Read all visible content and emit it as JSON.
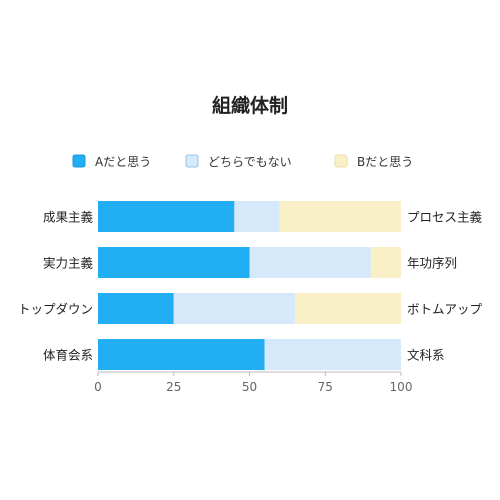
{
  "chart_data": {
    "type": "bar",
    "orientation": "horizontal",
    "stacked": true,
    "title": "組織体制",
    "categories": [
      "成果主義",
      "実力主義",
      "トップダウン",
      "体育会系"
    ],
    "right_labels": [
      "プロセス主義",
      "年功序列",
      "ボトムアップ",
      "文科系"
    ],
    "series": [
      {
        "name": "Aだと思う",
        "color": "#22aef2",
        "values": [
          45,
          50,
          25,
          55
        ]
      },
      {
        "name": "どちらでもない",
        "color": "#d6e9fb",
        "values": [
          15,
          40,
          40,
          45
        ]
      },
      {
        "name": "Bだと思う",
        "color": "#faf0c8",
        "values": [
          40,
          10,
          35,
          0
        ]
      }
    ],
    "xlim": [
      0,
      100
    ],
    "xticks": [
      0,
      25,
      50,
      75,
      100
    ],
    "legend_position": "top",
    "grid": false
  }
}
